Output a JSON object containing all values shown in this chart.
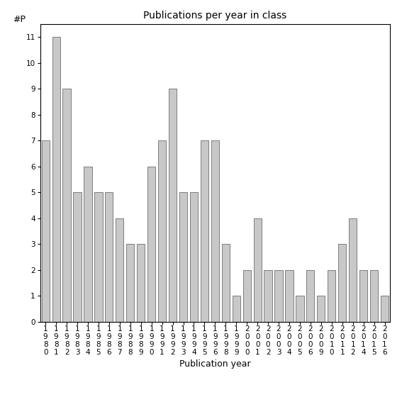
{
  "years": [
    1980,
    1981,
    1982,
    1983,
    1984,
    1985,
    1986,
    1987,
    1988,
    1989,
    1990,
    1991,
    1992,
    1993,
    1994,
    1995,
    1996,
    1998,
    1999,
    2000,
    2001,
    2002,
    2003,
    2004,
    2005,
    2006,
    2009,
    2010,
    2011,
    2012,
    2014,
    2015,
    2016
  ],
  "values": [
    7,
    11,
    9,
    5,
    6,
    5,
    5,
    4,
    3,
    3,
    6,
    7,
    9,
    5,
    5,
    7,
    7,
    3,
    1,
    2,
    4,
    2,
    2,
    2,
    1,
    2,
    1,
    2,
    3,
    4,
    2,
    2,
    1
  ],
  "bar_color": "#c8c8c8",
  "bar_edge_color": "#555555",
  "title": "Publications per year in class",
  "xlabel": "Publication year",
  "ylabel": "#P",
  "ylim": [
    0,
    11.5
  ],
  "yticks": [
    0,
    1,
    2,
    3,
    4,
    5,
    6,
    7,
    8,
    9,
    10,
    11
  ],
  "background_color": "#ffffff",
  "title_fontsize": 10,
  "axis_fontsize": 9,
  "tick_fontsize": 7.5
}
